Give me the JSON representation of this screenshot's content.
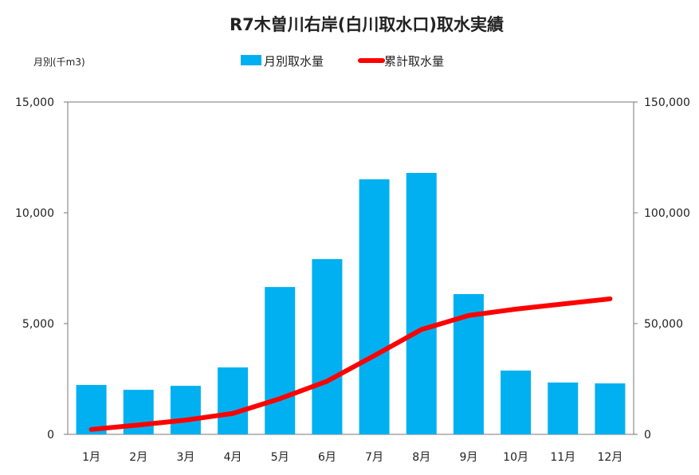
{
  "chart_data": {
    "type": "bar+line",
    "title": "R7木曽川右岸(白川取水口)取水実績",
    "ylabel_left": "月別(千m3)",
    "categories": [
      "1月",
      "2月",
      "3月",
      "4月",
      "5月",
      "6月",
      "7月",
      "8月",
      "9月",
      "10月",
      "11月",
      "12月"
    ],
    "series": [
      {
        "name": "月別取水量",
        "type": "bar",
        "axis": "left",
        "color": "#00b0f0",
        "values": [
          2230,
          2010,
          2190,
          3020,
          6650,
          7910,
          11510,
          11800,
          6330,
          2880,
          2340,
          2300
        ]
      },
      {
        "name": "累計取水量",
        "type": "line",
        "axis": "right",
        "color": "#ff0000",
        "values": [
          2230,
          4240,
          6430,
          9450,
          16100,
          24010,
          35520,
          47320,
          53650,
          56530,
          58870,
          61170
        ]
      }
    ],
    "ylim_left": [
      0,
      15000
    ],
    "ylim_right": [
      0,
      150000
    ],
    "yticks_left": [
      "0",
      "5,000",
      "10,000",
      "15,000"
    ],
    "yticks_right": [
      "0",
      "50,000",
      "100,000",
      "150,000"
    ],
    "legend_position": "top-center",
    "grid": false
  }
}
